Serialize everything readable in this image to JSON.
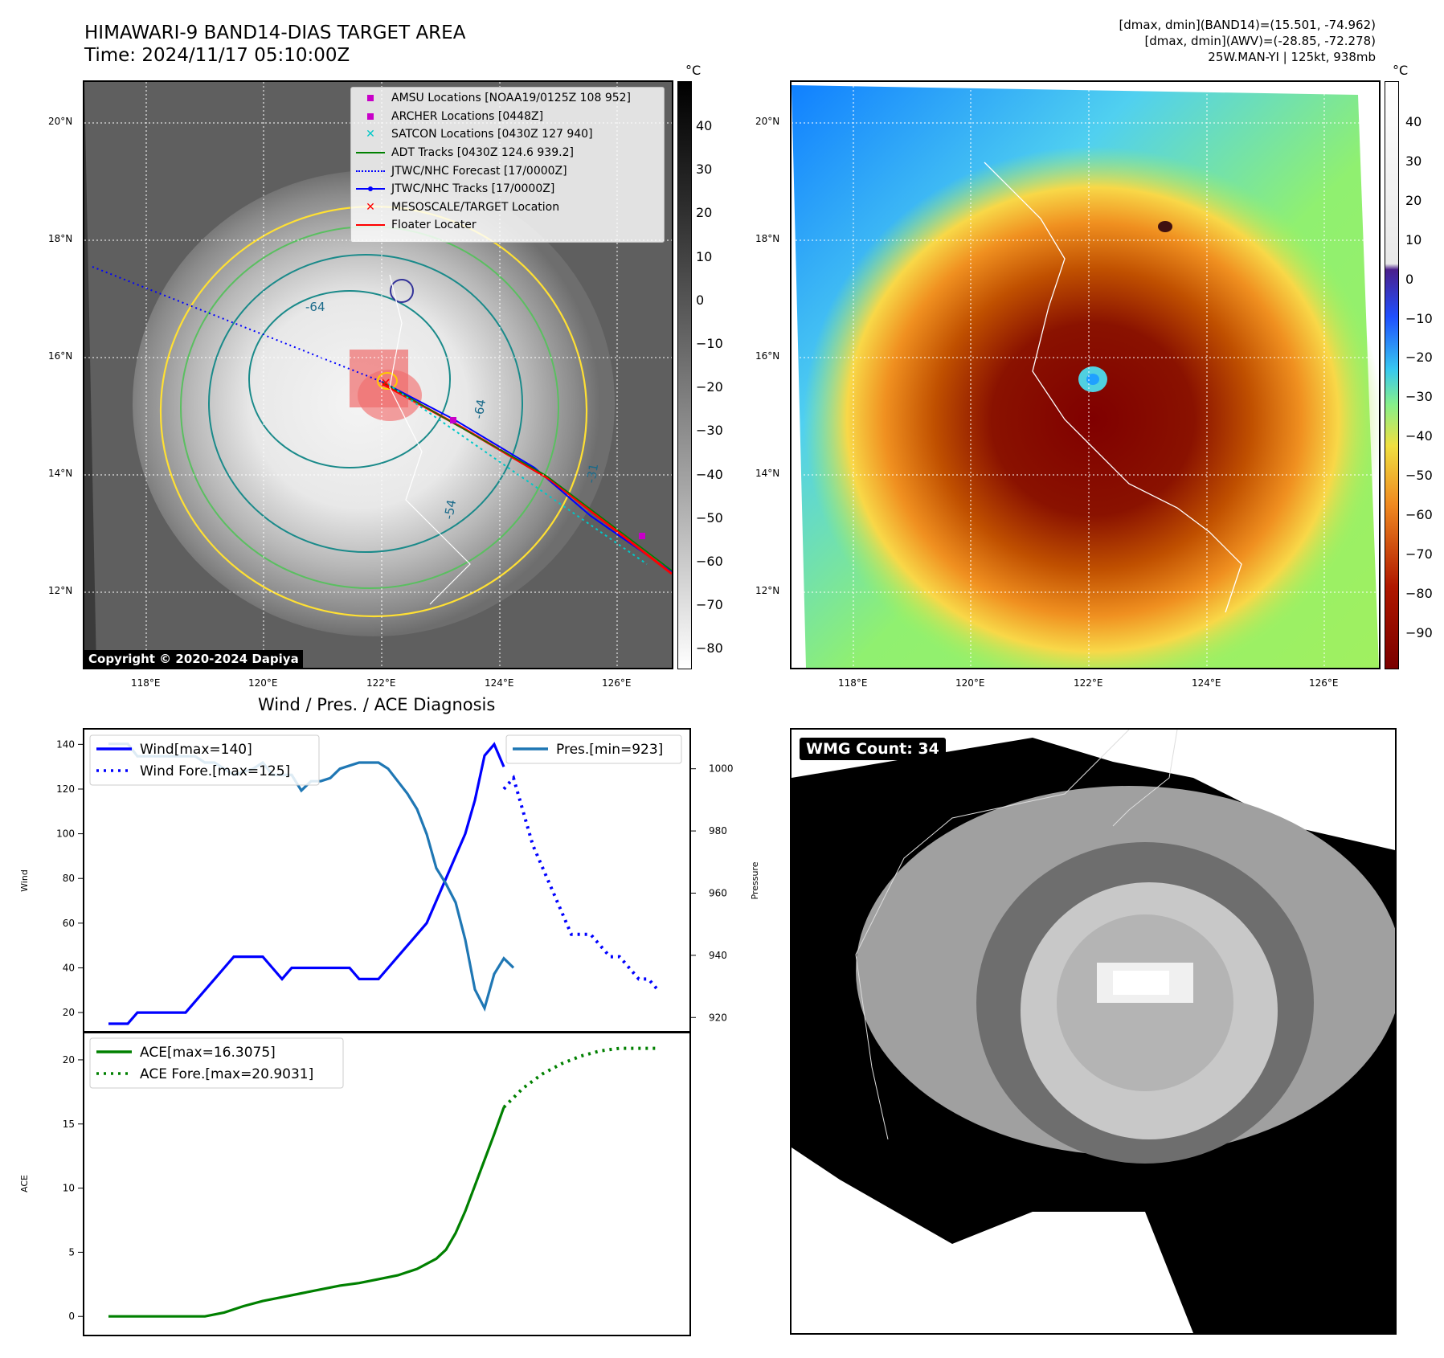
{
  "header": {
    "title_line1": "HIMAWARI-9 BAND14-DIAS TARGET AREA",
    "title_line2": "Time: 2024/11/17 05:10:00Z",
    "info_line1": "[dmax, dmin](BAND14)=(15.501, -74.962)",
    "info_line2": "[dmax, dmin](AWV)=(-28.85, -72.278)",
    "info_line3": "25W.MAN-YI | 125kt, 938mb"
  },
  "map_ticks": {
    "lat": [
      "20°N",
      "18°N",
      "16°N",
      "14°N",
      "12°N"
    ],
    "lon": [
      "118°E",
      "120°E",
      "122°E",
      "124°E",
      "126°E"
    ]
  },
  "colorbars": {
    "ir_unit": "°C",
    "ir_ticks": [
      "40",
      "30",
      "20",
      "10",
      "0",
      "−10",
      "−20",
      "−30",
      "−40",
      "−50",
      "−60",
      "−70",
      "−80"
    ],
    "wv_unit": "°C",
    "wv_ticks": [
      "40",
      "30",
      "20",
      "10",
      "0",
      "−10",
      "−20",
      "−30",
      "−40",
      "−50",
      "−60",
      "−70",
      "−80",
      "−90"
    ]
  },
  "legend_ir": {
    "items": [
      {
        "label": "AMSU Locations [NOAA19/0125Z 108 952]",
        "color": "#c800c8",
        "marker": "square"
      },
      {
        "label": "ARCHER Locations [0448Z]",
        "color": "#c800c8",
        "marker": "square"
      },
      {
        "label": "SATCON Locations [0430Z 127 940]",
        "color": "#00c8c8",
        "marker": "x"
      },
      {
        "label": "ADT Tracks [0430Z 124.6 939.2]",
        "color": "#008000",
        "marker": "line"
      },
      {
        "label": "JTWC/NHC Forecast [17/0000Z]",
        "color": "#0000ff",
        "marker": "dotted"
      },
      {
        "label": "JTWC/NHC Tracks [17/0000Z]",
        "color": "#0000ff",
        "marker": "line-dot"
      },
      {
        "label": "MESOSCALE/TARGET Location",
        "color": "#ff0000",
        "marker": "x"
      },
      {
        "label": "Floater Locater",
        "color": "#ff0000",
        "marker": "line"
      }
    ]
  },
  "contour_labels": [
    "-64",
    "-64",
    "-54",
    "-31"
  ],
  "copyright": "Copyright © 2020-2024 Dapiya",
  "diag_title": "Wind / Pres. / ACE Diagnosis",
  "wmg_label": "WMG Count: 34",
  "chart_data": [
    {
      "type": "line",
      "panel": "wind-pressure",
      "ylabel": "Wind",
      "ylabel_right": "Pressure",
      "ylim": [
        15,
        143
      ],
      "ylim_right": [
        918,
        1010
      ],
      "yticks": [
        20,
        40,
        60,
        80,
        100,
        120,
        140
      ],
      "yticks_right": [
        920,
        940,
        960,
        980,
        1000
      ],
      "legend": [
        {
          "label": "Wind[max=140]",
          "color": "#0000ff",
          "style": "solid"
        },
        {
          "label": "Wind Fore.[max=125]",
          "color": "#0000ff",
          "style": "dotted"
        },
        {
          "label": "Pres.[min=923]",
          "color": "#1f77b4",
          "style": "solid"
        }
      ],
      "series": [
        {
          "name": "Wind[max=140]",
          "x": [
            0,
            1,
            2,
            3,
            4,
            5,
            6,
            7,
            8,
            9,
            10,
            11,
            12,
            13,
            14,
            15,
            16,
            17,
            18,
            19,
            20,
            21,
            22,
            23,
            24,
            25,
            26,
            27,
            28,
            29,
            30,
            31,
            32,
            33,
            34,
            35,
            36,
            37,
            38,
            39,
            40,
            41
          ],
          "values": [
            15,
            15,
            15,
            20,
            20,
            20,
            20,
            20,
            20,
            25,
            30,
            35,
            40,
            45,
            45,
            45,
            45,
            40,
            35,
            40,
            40,
            40,
            40,
            40,
            40,
            40,
            35,
            35,
            35,
            40,
            45,
            50,
            55,
            60,
            70,
            80,
            90,
            100,
            115,
            135,
            140,
            130
          ]
        },
        {
          "name": "Wind Fore.[max=125]",
          "x": [
            41,
            42,
            43,
            44,
            45,
            46,
            47,
            48,
            49,
            50,
            51,
            52,
            53,
            54,
            55,
            56,
            57
          ],
          "values": [
            120,
            125,
            110,
            95,
            85,
            75,
            65,
            55,
            55,
            55,
            50,
            45,
            45,
            40,
            35,
            35,
            30
          ]
        },
        {
          "name": "Pres.[min=923]",
          "x": [
            0,
            1,
            2,
            3,
            4,
            5,
            6,
            7,
            8,
            9,
            10,
            11,
            12,
            13,
            14,
            15,
            16,
            17,
            18,
            19,
            20,
            21,
            22,
            23,
            24,
            25,
            26,
            27,
            28,
            29,
            30,
            31,
            32,
            33,
            34,
            35,
            36,
            37,
            38,
            39,
            40,
            41,
            42
          ],
          "values": [
            1008,
            1008,
            1008,
            1004,
            1004,
            1004,
            1004,
            1004,
            1004,
            1004,
            1002,
            1002,
            1000,
            998,
            999,
            1000,
            1002,
            998,
            998,
            998,
            993,
            996,
            996,
            997,
            1000,
            1001,
            1002,
            1002,
            1002,
            1000,
            996,
            992,
            987,
            979,
            968,
            963,
            957,
            945,
            929,
            923,
            934,
            939,
            936
          ]
        }
      ]
    },
    {
      "type": "line",
      "panel": "ace",
      "ylabel": "ACE",
      "ylim": [
        -0.8,
        21.5
      ],
      "yticks": [
        0,
        5,
        10,
        15,
        20
      ],
      "legend": [
        {
          "label": "ACE[max=16.3075]",
          "color": "#008000",
          "style": "solid"
        },
        {
          "label": "ACE Fore.[max=20.9031]",
          "color": "#008000",
          "style": "dotted"
        }
      ],
      "series": [
        {
          "name": "ACE[max=16.3075]",
          "x": [
            0,
            2,
            4,
            6,
            8,
            10,
            12,
            14,
            16,
            18,
            20,
            22,
            24,
            26,
            28,
            30,
            32,
            34,
            35,
            36,
            37,
            38,
            39,
            40,
            41
          ],
          "values": [
            0,
            0,
            0,
            0,
            0,
            0,
            0.3,
            0.8,
            1.2,
            1.5,
            1.8,
            2.1,
            2.4,
            2.6,
            2.9,
            3.2,
            3.7,
            4.5,
            5.2,
            6.5,
            8.2,
            10.2,
            12.2,
            14.2,
            16.3
          ]
        },
        {
          "name": "ACE Fore.[max=20.9031]",
          "x": [
            41,
            43,
            45,
            47,
            49,
            51,
            53,
            55,
            57
          ],
          "values": [
            16.3,
            17.8,
            18.9,
            19.7,
            20.3,
            20.7,
            20.9,
            20.9,
            20.9
          ]
        }
      ]
    }
  ]
}
